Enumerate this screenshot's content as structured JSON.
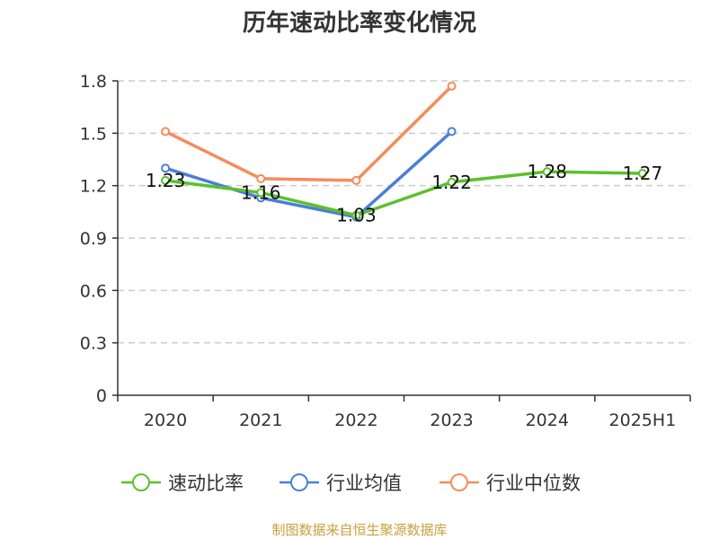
{
  "chart_data": {
    "type": "line",
    "title": "历年速动比率变化情况",
    "categories": [
      "2020",
      "2021",
      "2022",
      "2023",
      "2024",
      "2025H1"
    ],
    "ylim": [
      0,
      1.8
    ],
    "yticks": [
      "0",
      "0.3",
      "0.6",
      "0.9",
      "1.2",
      "1.5",
      "1.8"
    ],
    "grid": true,
    "legend_position": "bottom",
    "series": [
      {
        "name": "速动比率",
        "color": "#5ac12c",
        "values": [
          1.23,
          1.16,
          1.03,
          1.22,
          1.28,
          1.27
        ],
        "labels": [
          "1.23",
          "1.16",
          "1.03",
          "1.22",
          "1.28",
          "1.27"
        ]
      },
      {
        "name": "行业均值",
        "color": "#4a7fd8",
        "values": [
          1.3,
          1.13,
          1.02,
          1.51,
          null,
          null
        ]
      },
      {
        "name": "行业中位数",
        "color": "#f58c5a",
        "values": [
          1.51,
          1.24,
          1.23,
          1.77,
          null,
          null
        ]
      }
    ]
  },
  "source": "制图数据来自恒生聚源数据库"
}
